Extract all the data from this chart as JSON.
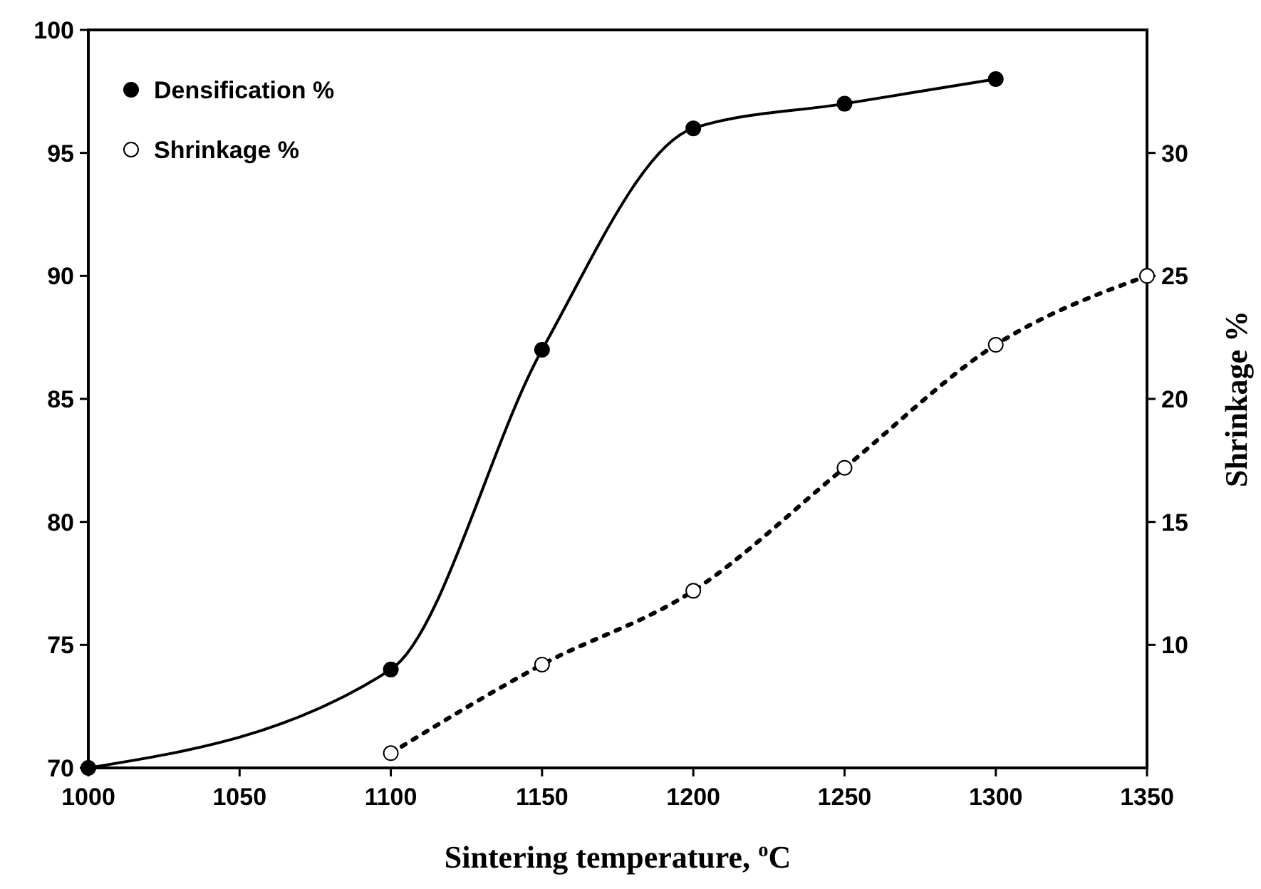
{
  "chart_data": {
    "type": "line",
    "xlabel": "Sintering temperature, $^{o}$C",
    "y2label": "Shrinkage %",
    "xlim": [
      1000,
      1350
    ],
    "xticks": [
      1000,
      1050,
      1100,
      1150,
      1200,
      1250,
      1300,
      1350
    ],
    "ylim": [
      70,
      100
    ],
    "yticks": [
      70,
      75,
      80,
      85,
      90,
      95,
      100
    ],
    "y2lim": [
      5,
      35
    ],
    "y2ticks": [
      10,
      15,
      20,
      25,
      30
    ],
    "grid": false,
    "legend": "top left",
    "marker": "circle",
    "series": [
      {
        "name": "Densification %",
        "color": "#000000",
        "x": [
          1000,
          1100,
          1150,
          1200,
          1250,
          1300
        ],
        "values": [
          70,
          74,
          87,
          96,
          97,
          98
        ],
        "line_style": "solid"
      },
      {
        "name": "Shrinkage %",
        "color": "#000000",
        "x": [
          1100,
          1150,
          1200,
          1250,
          1300,
          1350
        ],
        "values": [
          5.6,
          9.2,
          12.2,
          17.2,
          22.2,
          25
        ],
        "axis": "y2",
        "line_style": "dotted"
      }
    ]
  }
}
